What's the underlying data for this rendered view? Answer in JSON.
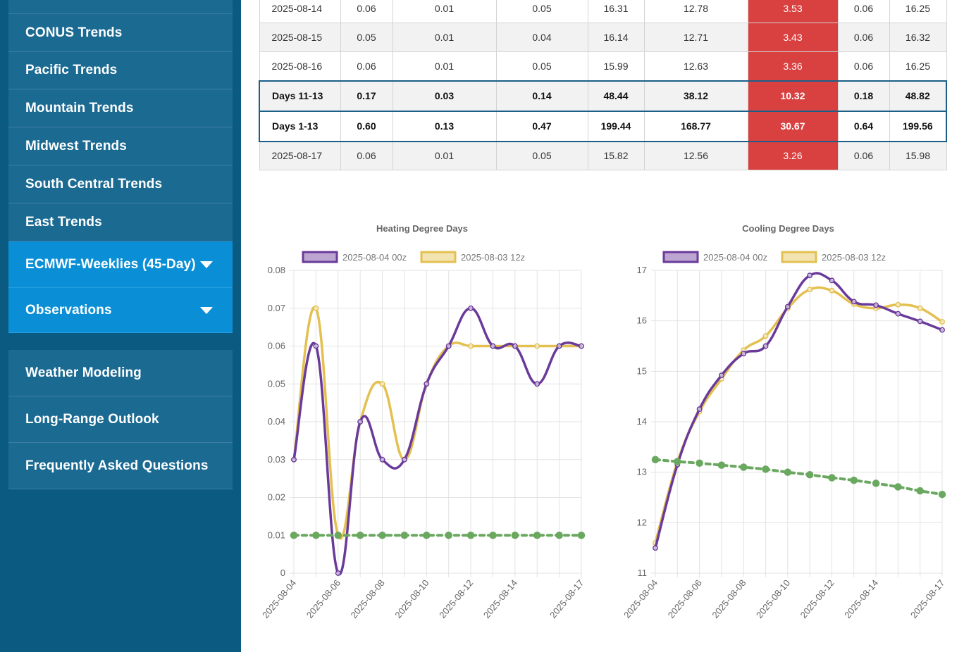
{
  "sidebar": {
    "items": [
      {
        "label": "CONUS Trends"
      },
      {
        "label": "Pacific Trends"
      },
      {
        "label": "Mountain Trends"
      },
      {
        "label": "Midwest Trends"
      },
      {
        "label": "South Central Trends"
      },
      {
        "label": "East Trends"
      },
      {
        "label": "ECMWF-Weeklies (45-Day)"
      },
      {
        "label": "Observations"
      }
    ],
    "secondary": [
      {
        "label": "Weather Modeling"
      },
      {
        "label": "Long-Range Outlook"
      },
      {
        "label": "Frequently Asked Questions"
      }
    ]
  },
  "table": {
    "rows": [
      {
        "label": "2025-08-14",
        "values": [
          "0.06",
          "0.01",
          "0.05",
          "16.31",
          "12.78",
          "3.53",
          "0.06",
          "16.25"
        ],
        "style": "plain"
      },
      {
        "label": "2025-08-15",
        "values": [
          "0.05",
          "0.01",
          "0.04",
          "16.14",
          "12.71",
          "3.43",
          "0.06",
          "16.32"
        ],
        "style": "alt"
      },
      {
        "label": "2025-08-16",
        "values": [
          "0.06",
          "0.01",
          "0.05",
          "15.99",
          "12.63",
          "3.36",
          "0.06",
          "16.25"
        ],
        "style": "plain"
      },
      {
        "label": "Days 11-13",
        "values": [
          "0.17",
          "0.03",
          "0.14",
          "48.44",
          "38.12",
          "10.32",
          "0.18",
          "48.82"
        ],
        "style": "sum"
      },
      {
        "label": "Days 1-13",
        "values": [
          "0.60",
          "0.13",
          "0.47",
          "199.44",
          "168.77",
          "30.67",
          "0.64",
          "199.56"
        ],
        "style": "sum"
      },
      {
        "label": "2025-08-17",
        "values": [
          "0.06",
          "0.01",
          "0.05",
          "15.82",
          "12.56",
          "3.26",
          "0.06",
          "15.98"
        ],
        "style": "alt"
      }
    ],
    "highlight_color": "#d94040"
  },
  "chart_data": [
    {
      "type": "line",
      "title": "Heating Degree Days",
      "x": [
        "2025-08-04",
        "2025-08-05",
        "2025-08-06",
        "2025-08-07",
        "2025-08-08",
        "2025-08-09",
        "2025-08-10",
        "2025-08-11",
        "2025-08-12",
        "2025-08-13",
        "2025-08-14",
        "2025-08-15",
        "2025-08-16",
        "2025-08-17"
      ],
      "xticks": [
        "2025-08-04",
        "2025-08-06",
        "2025-08-08",
        "2025-08-10",
        "2025-08-12",
        "2025-08-14",
        "2025-08-17"
      ],
      "yticks": [
        0,
        0.01,
        0.02,
        0.03,
        0.04,
        0.05,
        0.06,
        0.07,
        0.08
      ],
      "ylim": [
        0,
        0.08
      ],
      "legend_position": "top",
      "grid": true,
      "series": [
        {
          "name": "2025-08-03 12z",
          "color": "#e3c050",
          "dashed": false,
          "values": [
            0.03,
            0.07,
            0.01,
            0.04,
            0.05,
            0.03,
            0.05,
            0.06,
            0.06,
            0.06,
            0.06,
            0.06,
            0.06,
            0.06
          ]
        },
        {
          "name": "2025-08-04 00z",
          "color": "#6a3a9a",
          "dashed": false,
          "values": [
            0.03,
            0.06,
            0.0,
            0.04,
            0.03,
            0.03,
            0.05,
            0.06,
            0.07,
            0.06,
            0.06,
            0.05,
            0.06,
            0.06
          ]
        },
        {
          "name": "",
          "color": "#6aa860",
          "dashed": true,
          "values": [
            0.01,
            0.01,
            0.01,
            0.01,
            0.01,
            0.01,
            0.01,
            0.01,
            0.01,
            0.01,
            0.01,
            0.01,
            0.01,
            0.01
          ]
        }
      ]
    },
    {
      "type": "line",
      "title": "Cooling Degree Days",
      "x": [
        "2025-08-04",
        "2025-08-05",
        "2025-08-06",
        "2025-08-07",
        "2025-08-08",
        "2025-08-09",
        "2025-08-10",
        "2025-08-11",
        "2025-08-12",
        "2025-08-13",
        "2025-08-14",
        "2025-08-15",
        "2025-08-16",
        "2025-08-17"
      ],
      "xticks": [
        "2025-08-04",
        "2025-08-06",
        "2025-08-08",
        "2025-08-10",
        "2025-08-12",
        "2025-08-14",
        "2025-08-17"
      ],
      "yticks": [
        11,
        12,
        13,
        14,
        15,
        16,
        17
      ],
      "ylim": [
        11,
        17
      ],
      "legend_position": "top",
      "grid": true,
      "series": [
        {
          "name": "2025-08-03 12z",
          "color": "#e3c050",
          "dashed": false,
          "values": [
            11.6,
            13.2,
            14.2,
            14.85,
            15.42,
            15.7,
            16.25,
            16.62,
            16.6,
            16.33,
            16.25,
            16.32,
            16.25,
            15.98
          ]
        },
        {
          "name": "2025-08-04 00z",
          "color": "#6a3a9a",
          "dashed": false,
          "values": [
            11.5,
            13.15,
            14.25,
            14.92,
            15.35,
            15.5,
            16.28,
            16.9,
            16.8,
            16.38,
            16.31,
            16.14,
            15.99,
            15.82
          ]
        },
        {
          "name": "",
          "color": "#6aa860",
          "dashed": true,
          "values": [
            13.25,
            13.21,
            13.18,
            13.14,
            13.1,
            13.06,
            13.0,
            12.95,
            12.89,
            12.84,
            12.78,
            12.71,
            12.63,
            12.56
          ]
        }
      ]
    }
  ]
}
